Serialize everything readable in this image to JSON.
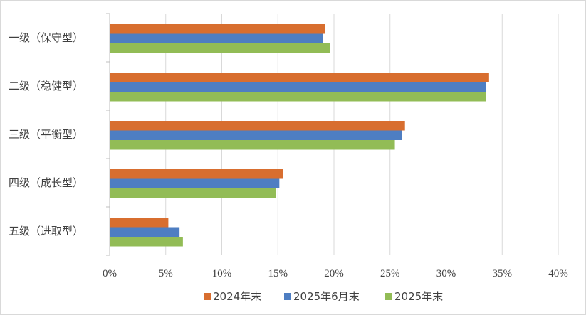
{
  "chart_data": {
    "type": "bar",
    "orientation": "horizontal",
    "categories": [
      "一级（保守型）",
      "二级（稳健型）",
      "三级（平衡型）",
      "四级（成长型）",
      "五级（进取型）"
    ],
    "series": [
      {
        "name": "2024年末",
        "color": "#d86e2f",
        "values": [
          19.2,
          33.8,
          26.3,
          15.4,
          5.2
        ]
      },
      {
        "name": "2025年6月末",
        "color": "#4e7ec2",
        "values": [
          19.0,
          33.5,
          26.0,
          15.1,
          6.2
        ]
      },
      {
        "name": "2025年末",
        "color": "#92bc56",
        "values": [
          19.6,
          33.5,
          25.4,
          14.8,
          6.5
        ]
      }
    ],
    "x_ticks": [
      "0%",
      "5%",
      "10%",
      "15%",
      "20%",
      "25%",
      "30%",
      "35%",
      "40%"
    ],
    "xlim": [
      0,
      40
    ],
    "x_unit": "%",
    "grid": true,
    "legend_position": "bottom"
  }
}
